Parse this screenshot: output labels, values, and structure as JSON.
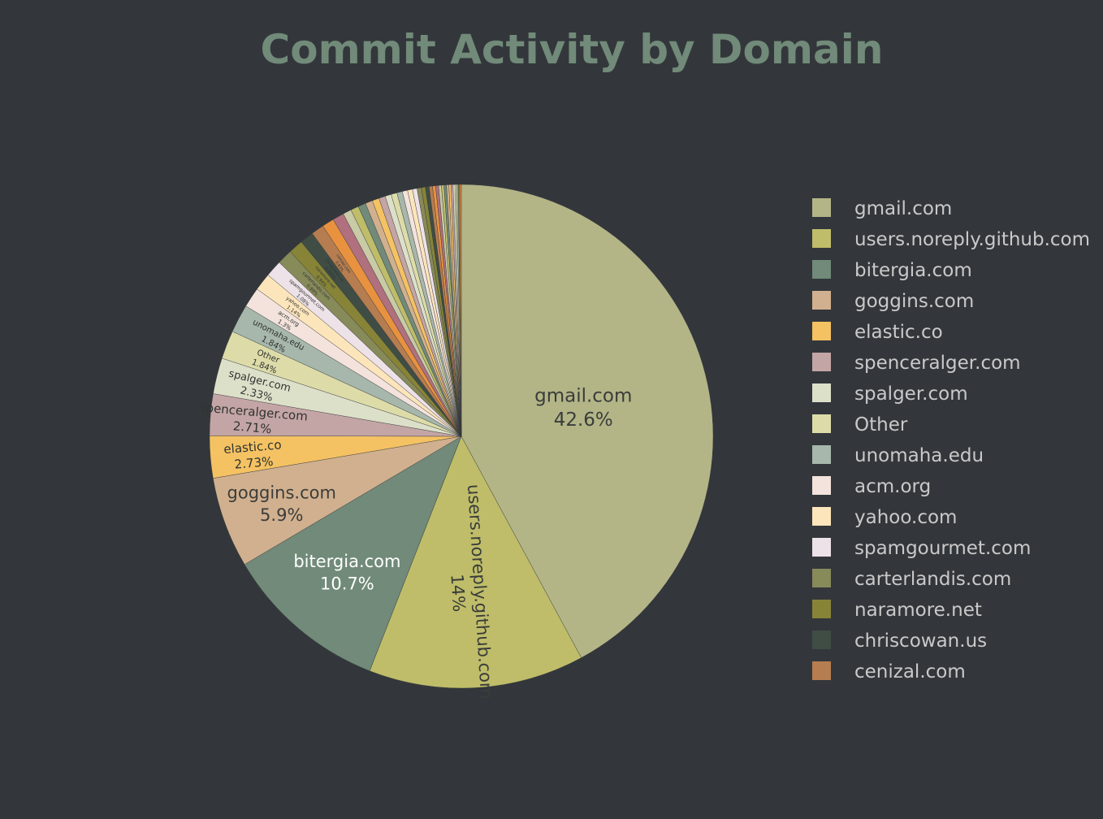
{
  "chart_data": {
    "type": "pie",
    "title": "Commit Activity by Domain",
    "legend_position": "right",
    "slices": [
      {
        "label": "gmail.com",
        "value": 42.6,
        "pct_label": "42.6%",
        "color": "#b3b587"
      },
      {
        "label": "users.noreply.github.com",
        "value": 14,
        "pct_label": "14%",
        "color": "#bfbd69"
      },
      {
        "label": "bitergia.com",
        "value": 10.7,
        "pct_label": "10.7%",
        "color": "#718a79"
      },
      {
        "label": "goggins.com",
        "value": 5.9,
        "pct_label": "5.9%",
        "color": "#d1b08f"
      },
      {
        "label": "elastic.co",
        "value": 2.73,
        "pct_label": "2.73%",
        "color": "#f5c263"
      },
      {
        "label": "spenceralger.com",
        "value": 2.71,
        "pct_label": "2.71%",
        "color": "#c4a5a5"
      },
      {
        "label": "spalger.com",
        "value": 2.33,
        "pct_label": "2.33%",
        "color": "#dde0c9"
      },
      {
        "label": "Other",
        "value": 1.84,
        "pct_label": "1.84%",
        "color": "#dddca9"
      },
      {
        "label": "unomaha.edu",
        "value": 1.84,
        "pct_label": "1.84%",
        "color": "#a7b7ab"
      },
      {
        "label": "acm.org",
        "value": 1.3,
        "pct_label": "1.3%",
        "color": "#f3e3dc"
      },
      {
        "label": "yahoo.com",
        "value": 1.14,
        "pct_label": "1.14%",
        "color": "#fde5bb"
      },
      {
        "label": "spamgourmet.com",
        "value": 1.08,
        "pct_label": "1.08%",
        "color": "#ede2e7"
      },
      {
        "label": "carterlandis.com",
        "value": 0.99,
        "pct_label": "0.99%",
        "color": "#878a59"
      },
      {
        "label": "naramore.net",
        "value": 0.94,
        "pct_label": "0.94%",
        "color": "#878438"
      },
      {
        "label": "chriscowan.us",
        "value": 0.885,
        "pct_label": "0.885%",
        "color": "#3f4d45"
      },
      {
        "label": "cenizal.com",
        "value": 0.83,
        "pct_label": "0.83%",
        "color": "#b67d50"
      },
      {
        "label": "",
        "value": 0.78,
        "pct_label": "",
        "color": "#e8923f"
      },
      {
        "label": "",
        "value": 0.74,
        "pct_label": "",
        "color": "#b0707d"
      },
      {
        "label": "",
        "value": 0.55,
        "pct_label": "",
        "color": "#c8cba6"
      },
      {
        "label": "",
        "value": 0.52,
        "pct_label": "",
        "color": "#bfbd69"
      },
      {
        "label": "",
        "value": 0.5,
        "pct_label": "",
        "color": "#718a79"
      },
      {
        "label": "",
        "value": 0.47,
        "pct_label": "",
        "color": "#d1b08f"
      },
      {
        "label": "",
        "value": 0.45,
        "pct_label": "",
        "color": "#f5c263"
      },
      {
        "label": "",
        "value": 0.42,
        "pct_label": "",
        "color": "#c4a5a5"
      },
      {
        "label": "",
        "value": 0.4,
        "pct_label": "",
        "color": "#dde0c9"
      },
      {
        "label": "",
        "value": 0.38,
        "pct_label": "",
        "color": "#dddca9"
      },
      {
        "label": "",
        "value": 0.36,
        "pct_label": "",
        "color": "#a7b7ab"
      },
      {
        "label": "",
        "value": 0.34,
        "pct_label": "",
        "color": "#f3e3dc"
      },
      {
        "label": "",
        "value": 0.32,
        "pct_label": "",
        "color": "#fde5bb"
      },
      {
        "label": "",
        "value": 0.3,
        "pct_label": "",
        "color": "#ede2e7"
      },
      {
        "label": "",
        "value": 0.28,
        "pct_label": "",
        "color": "#878a59"
      },
      {
        "label": "",
        "value": 0.26,
        "pct_label": "",
        "color": "#878438"
      },
      {
        "label": "",
        "value": 0.24,
        "pct_label": "",
        "color": "#3f4d45"
      },
      {
        "label": "",
        "value": 0.22,
        "pct_label": "",
        "color": "#b67d50"
      },
      {
        "label": "",
        "value": 0.2,
        "pct_label": "",
        "color": "#e8923f"
      },
      {
        "label": "",
        "value": 0.19,
        "pct_label": "",
        "color": "#b0707d"
      },
      {
        "label": "",
        "value": 0.18,
        "pct_label": "",
        "color": "#c8cba6"
      },
      {
        "label": "",
        "value": 0.17,
        "pct_label": "",
        "color": "#bfbd69"
      },
      {
        "label": "",
        "value": 0.16,
        "pct_label": "",
        "color": "#718a79"
      },
      {
        "label": "",
        "value": 0.15,
        "pct_label": "",
        "color": "#d1b08f"
      },
      {
        "label": "",
        "value": 0.14,
        "pct_label": "",
        "color": "#f5c263"
      },
      {
        "label": "",
        "value": 0.13,
        "pct_label": "",
        "color": "#c4a5a5"
      },
      {
        "label": "",
        "value": 0.12,
        "pct_label": "",
        "color": "#dde0c9"
      },
      {
        "label": "",
        "value": 0.11,
        "pct_label": "",
        "color": "#dddca9"
      },
      {
        "label": "",
        "value": 0.1,
        "pct_label": "",
        "color": "#a7b7ab"
      },
      {
        "label": "",
        "value": 0.1,
        "pct_label": "",
        "color": "#878438"
      },
      {
        "label": "",
        "value": 0.1,
        "pct_label": "",
        "color": "#e8923f"
      }
    ],
    "legend": [
      {
        "label": "gmail.com",
        "color": "#b3b587"
      },
      {
        "label": "users.noreply.github.com",
        "color": "#bfbd69"
      },
      {
        "label": "bitergia.com",
        "color": "#718a79"
      },
      {
        "label": "goggins.com",
        "color": "#d1b08f"
      },
      {
        "label": "elastic.co",
        "color": "#f5c263"
      },
      {
        "label": "spenceralger.com",
        "color": "#c4a5a5"
      },
      {
        "label": "spalger.com",
        "color": "#dde0c9"
      },
      {
        "label": "Other",
        "color": "#dddca9"
      },
      {
        "label": "unomaha.edu",
        "color": "#a7b7ab"
      },
      {
        "label": "acm.org",
        "color": "#f3e3dc"
      },
      {
        "label": "yahoo.com",
        "color": "#fde5bb"
      },
      {
        "label": "spamgourmet.com",
        "color": "#ede2e7"
      },
      {
        "label": "carterlandis.com",
        "color": "#878a59"
      },
      {
        "label": "naramore.net",
        "color": "#878438"
      },
      {
        "label": "chriscowan.us",
        "color": "#3f4d45"
      },
      {
        "label": "cenizal.com",
        "color": "#b67d50"
      }
    ]
  }
}
